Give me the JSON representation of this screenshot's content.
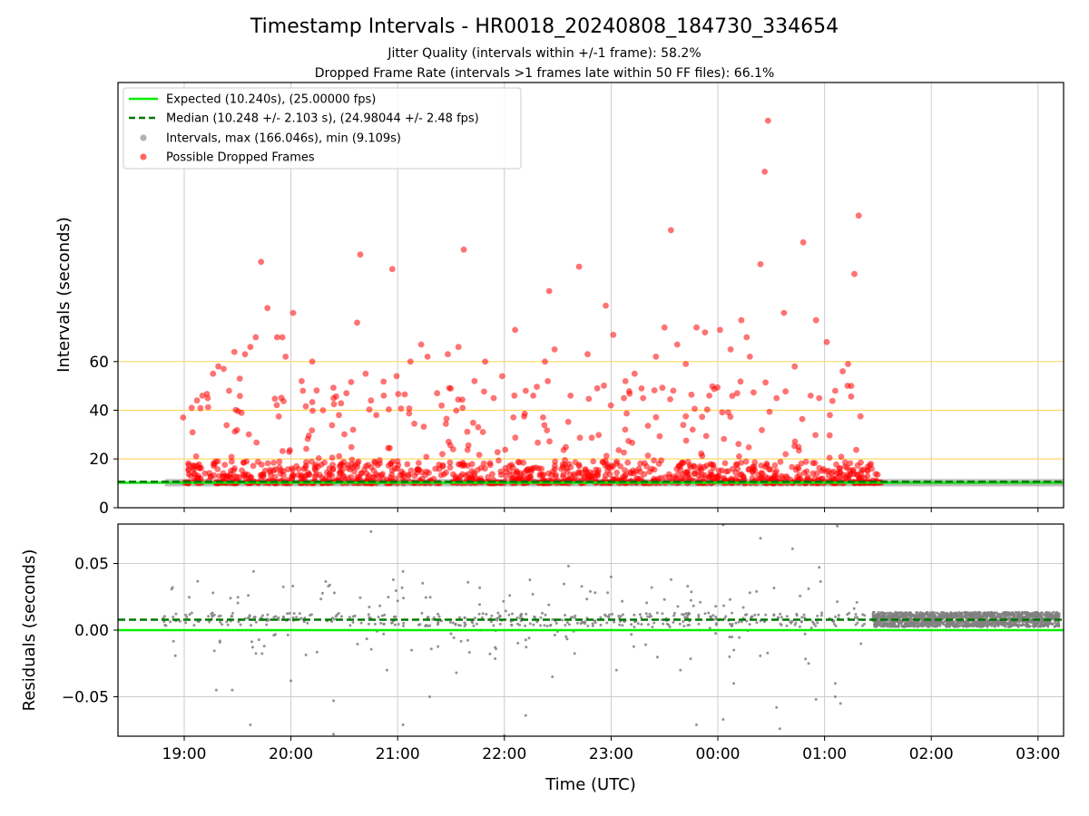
{
  "title": "Timestamp Intervals - HR0018_20240808_184730_334654",
  "subtitle_1": "Jitter Quality (intervals within +/-1 frame): 58.2%",
  "subtitle_2": "Dropped Frame Rate (intervals >1 frames late within 50 FF files): 66.1%",
  "colors": {
    "expected": "#00ee00",
    "median": "#007700",
    "intervals": "#808080",
    "dropped": "#ff0000",
    "hline": "#ffd966",
    "grid": "#cccccc"
  },
  "chart_data": [
    {
      "type": "scatter",
      "ylabel": "Intervals (seconds)",
      "y_ticks": [
        "0",
        "20",
        "40",
        "60"
      ],
      "grid": true,
      "legend_position": "top-left",
      "legend": [
        "Expected (10.240s), (25.00000 fps)",
        "Median (10.248 +/- 2.103 s), (24.98044 +/- 2.48 fps)",
        "Intervals, max (166.046s), min (9.109s)",
        "Possible Dropped Frames"
      ],
      "x_range_hours": [
        18.38,
        27.2
      ],
      "expected": 10.24,
      "median": 10.248,
      "reference_lines": [
        20,
        40,
        60
      ],
      "series": [
        {
          "name": "Possible Dropped Frames",
          "points": [
            [
              19.72,
              101
            ],
            [
              19.78,
              82
            ],
            [
              19.92,
              70
            ],
            [
              20.02,
              80
            ],
            [
              19.62,
              66
            ],
            [
              19.57,
              63
            ],
            [
              19.47,
              64
            ],
            [
              19.37,
              57
            ],
            [
              19.32,
              58
            ],
            [
              19.27,
              55
            ],
            [
              19.17,
              46
            ],
            [
              19.07,
              41
            ],
            [
              18.99,
              37
            ],
            [
              19.12,
              44
            ],
            [
              19.22,
              45
            ],
            [
              19.42,
              48
            ],
            [
              19.52,
              53
            ],
            [
              19.67,
              70
            ],
            [
              19.87,
              70
            ],
            [
              19.95,
              62
            ],
            [
              20.1,
              52
            ],
            [
              20.2,
              60
            ],
            [
              20.3,
              40
            ],
            [
              20.4,
              45
            ],
            [
              20.45,
              38
            ],
            [
              20.52,
              47
            ],
            [
              20.62,
              76
            ],
            [
              20.65,
              104
            ],
            [
              20.7,
              55
            ],
            [
              20.75,
              44
            ],
            [
              20.8,
              38
            ],
            [
              20.87,
              46
            ],
            [
              20.95,
              98
            ],
            [
              20.99,
              54
            ],
            [
              21.12,
              60
            ],
            [
              21.22,
              67
            ],
            [
              21.28,
              62
            ],
            [
              21.37,
              47
            ],
            [
              21.47,
              63
            ],
            [
              21.57,
              66
            ],
            [
              21.62,
              106
            ],
            [
              21.72,
              52
            ],
            [
              21.82,
              60
            ],
            [
              21.9,
              45
            ],
            [
              21.98,
              54
            ],
            [
              22.1,
              73
            ],
            [
              22.2,
              48
            ],
            [
              22.27,
              46
            ],
            [
              22.38,
              60
            ],
            [
              22.42,
              89
            ],
            [
              22.47,
              65
            ],
            [
              22.62,
              46
            ],
            [
              22.7,
              99
            ],
            [
              22.78,
              63
            ],
            [
              22.87,
              49
            ],
            [
              22.95,
              83
            ],
            [
              23.02,
              71
            ],
            [
              23.12,
              45
            ],
            [
              23.22,
              55
            ],
            [
              23.3,
              45
            ],
            [
              23.42,
              62
            ],
            [
              23.5,
              74
            ],
            [
              23.56,
              114
            ],
            [
              23.62,
              67
            ],
            [
              23.7,
              59
            ],
            [
              23.8,
              74
            ],
            [
              23.88,
              72
            ],
            [
              23.92,
              46
            ],
            [
              24.02,
              73
            ],
            [
              24.12,
              65
            ],
            [
              24.22,
              77
            ],
            [
              24.27,
              70
            ],
            [
              24.3,
              62
            ],
            [
              24.4,
              100
            ],
            [
              24.44,
              138
            ],
            [
              24.47,
              159
            ],
            [
              24.55,
              45
            ],
            [
              24.62,
              80
            ],
            [
              24.72,
              58
            ],
            [
              24.8,
              109
            ],
            [
              24.87,
              46
            ],
            [
              24.92,
              77
            ],
            [
              25.02,
              68
            ],
            [
              25.1,
              48
            ],
            [
              25.17,
              56
            ],
            [
              25.22,
              59
            ],
            [
              25.28,
              96
            ],
            [
              25.32,
              120
            ],
            [
              25.05,
              38
            ],
            [
              24.95,
              45
            ],
            [
              25.25,
              50
            ]
          ]
        }
      ]
    },
    {
      "type": "scatter",
      "xlabel": "Time (UTC)",
      "ylabel": "Residuals (seconds)",
      "x_ticks": [
        "19:00",
        "20:00",
        "21:00",
        "22:00",
        "23:00",
        "00:00",
        "01:00",
        "02:00",
        "03:00"
      ],
      "y_ticks": [
        "−0.05",
        "0.00",
        "0.05"
      ],
      "ylim": [
        -0.08,
        0.08
      ],
      "grid": true,
      "series": [
        {
          "name": "Residuals",
          "points": [
            [
              19.65,
              0.044
            ],
            [
              20.75,
              0.074
            ],
            [
              21.05,
              0.044
            ],
            [
              22.6,
              0.048
            ],
            [
              23.0,
              0.04
            ],
            [
              24.05,
              0.079
            ],
            [
              24.4,
              0.069
            ],
            [
              24.7,
              0.061
            ],
            [
              25.12,
              0.078
            ],
            [
              24.95,
              0.047
            ],
            [
              19.62,
              -0.071
            ],
            [
              20.4,
              -0.078
            ],
            [
              21.05,
              -0.071
            ],
            [
              22.0,
              -0.079
            ],
            [
              22.2,
              -0.064
            ],
            [
              23.8,
              -0.071
            ],
            [
              24.05,
              -0.067
            ],
            [
              24.58,
              -0.074
            ],
            [
              19.3,
              -0.045
            ],
            [
              19.45,
              -0.045
            ],
            [
              20.4,
              -0.053
            ],
            [
              21.3,
              -0.05
            ],
            [
              24.55,
              -0.058
            ],
            [
              25.1,
              -0.05
            ],
            [
              24.92,
              -0.052
            ],
            [
              25.15,
              -0.055
            ],
            [
              20.35,
              0.033
            ],
            [
              19.6,
              0.026
            ],
            [
              21.0,
              0.022
            ],
            [
              22.05,
              0.026
            ],
            [
              22.85,
              0.028
            ],
            [
              23.5,
              0.023
            ],
            [
              24.3,
              0.028
            ],
            [
              24.85,
              0.031
            ],
            [
              19.75,
              -0.012
            ],
            [
              20.0,
              -0.038
            ],
            [
              20.9,
              -0.03
            ],
            [
              21.55,
              -0.032
            ],
            [
              22.45,
              -0.035
            ],
            [
              23.05,
              -0.03
            ],
            [
              23.65,
              -0.03
            ],
            [
              24.15,
              -0.04
            ],
            [
              24.85,
              -0.025
            ],
            [
              25.1,
              -0.04
            ]
          ]
        }
      ]
    }
  ]
}
